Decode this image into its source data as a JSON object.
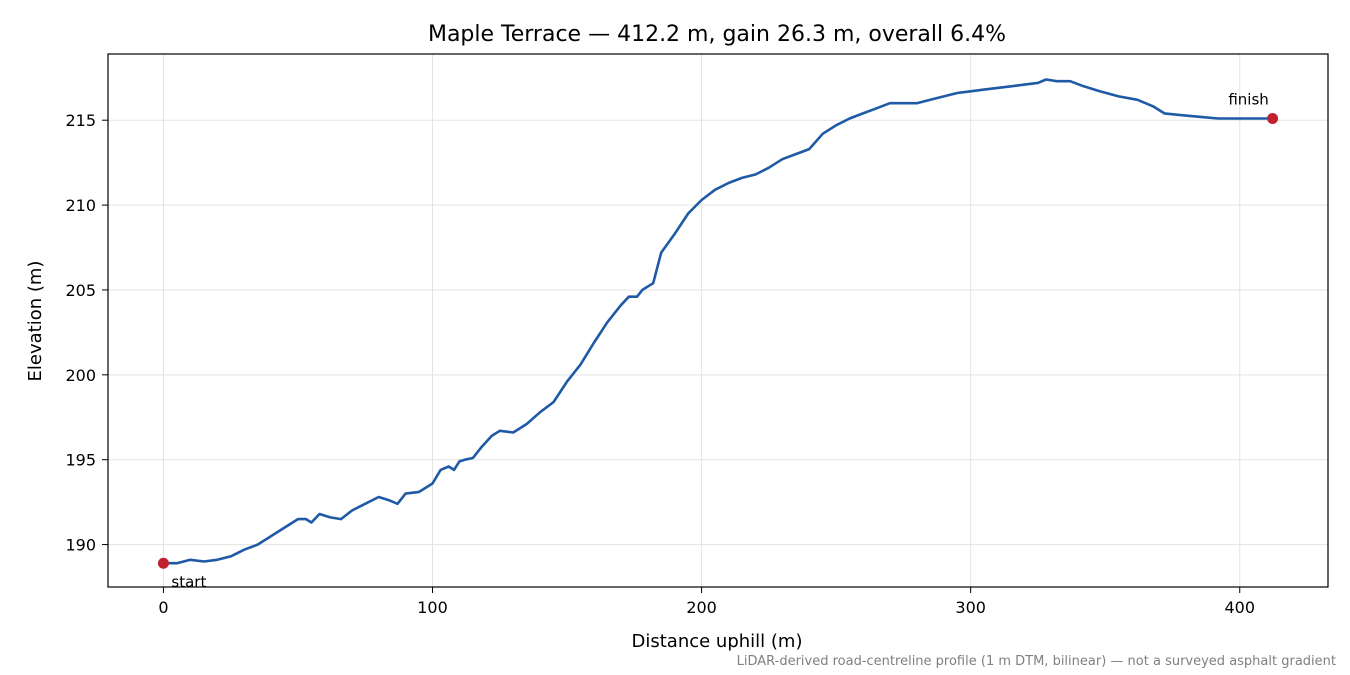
{
  "chart_data": {
    "type": "line",
    "title": "Maple Terrace — 412.2 m, gain 26.3 m, overall 6.4%",
    "xlabel": "Distance uphill (m)",
    "ylabel": "Elevation (m)",
    "xlim": [
      -20.6,
      432.8
    ],
    "ylim": [
      187.5,
      218.9
    ],
    "xticks": [
      0,
      100,
      200,
      300,
      400
    ],
    "yticks": [
      190,
      195,
      200,
      205,
      210,
      215
    ],
    "grid": true,
    "line_color": "#1f5aa6",
    "marker_color": "#c0202f",
    "series": [
      {
        "x": [
          0,
          5,
          10,
          15,
          20,
          25,
          30,
          35,
          40,
          45,
          50,
          53,
          55,
          58,
          62,
          66,
          70,
          75,
          80,
          84,
          87,
          90,
          95,
          100,
          103,
          106,
          108,
          110,
          112,
          115,
          118,
          122,
          125,
          130,
          135,
          140,
          145,
          150,
          155,
          160,
          165,
          170,
          173,
          176,
          178,
          182,
          185,
          190,
          195,
          200,
          205,
          210,
          215,
          220,
          225,
          230,
          235,
          240,
          245,
          250,
          255,
          260,
          265,
          270,
          275,
          280,
          285,
          290,
          295,
          300,
          305,
          310,
          315,
          320,
          325,
          328,
          332,
          337,
          342,
          348,
          355,
          362,
          368,
          372,
          378,
          385,
          392,
          400,
          406,
          412.2
        ],
        "y": [
          188.9,
          188.9,
          189.1,
          189.0,
          189.1,
          189.3,
          189.7,
          190.0,
          190.5,
          191.0,
          191.5,
          191.5,
          191.3,
          191.8,
          191.6,
          191.5,
          192.0,
          192.4,
          192.8,
          192.6,
          192.4,
          193.0,
          193.1,
          193.6,
          194.4,
          194.6,
          194.4,
          194.9,
          195.0,
          195.1,
          195.7,
          196.4,
          196.7,
          196.6,
          197.1,
          197.8,
          198.4,
          199.6,
          200.6,
          201.9,
          203.1,
          204.1,
          204.6,
          204.6,
          205.0,
          205.4,
          207.2,
          208.3,
          209.5,
          210.3,
          210.9,
          211.3,
          211.6,
          211.8,
          212.2,
          212.7,
          213.0,
          213.3,
          214.2,
          214.7,
          215.1,
          215.4,
          215.7,
          216.0,
          216.0,
          216.0,
          216.2,
          216.4,
          216.6,
          216.7,
          216.8,
          216.9,
          217.0,
          217.1,
          217.2,
          217.4,
          217.3,
          217.3,
          217.0,
          216.7,
          216.4,
          216.2,
          215.8,
          215.4,
          215.3,
          215.2,
          215.1,
          215.1,
          215.1,
          215.1
        ]
      }
    ],
    "annotations": [
      {
        "text": "start",
        "x": 0,
        "y": 188.9
      },
      {
        "text": "finish",
        "x": 412.2,
        "y": 215.1
      }
    ],
    "footnote": "LiDAR-derived road-centreline profile (1 m DTM, bilinear) — not a surveyed asphalt gradient"
  }
}
